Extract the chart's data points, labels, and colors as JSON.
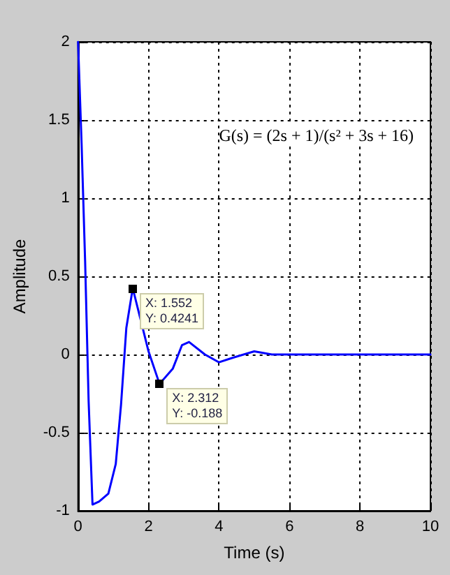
{
  "chart_data": {
    "type": "line",
    "xlabel": "Time (s)",
    "ylabel": "Amplitude",
    "x": [
      0,
      0.1,
      0.2,
      0.3,
      0.41,
      0.6,
      0.86,
      1.07,
      1.22,
      1.37,
      1.552,
      1.8,
      2.0,
      2.312,
      2.69,
      2.95,
      3.15,
      3.6,
      4.0,
      4.4,
      5.0,
      5.5,
      10
    ],
    "series": [
      {
        "color": "#0000ff",
        "values": [
          2,
          1.35,
          0.6,
          -0.3,
          -0.96,
          -0.94,
          -0.89,
          -0.7,
          -0.32,
          0.17,
          0.4241,
          0.2,
          0.02,
          -0.188,
          -0.09,
          0.06,
          0.08,
          0,
          -0.05,
          -0.02,
          0.02,
          0,
          0
        ]
      }
    ],
    "xlim": [
      0,
      10
    ],
    "xticks": [
      0,
      2,
      4,
      6,
      8,
      10
    ],
    "ylim": [
      -1,
      2
    ],
    "yticks": [
      -1,
      -0.5,
      0,
      0.5,
      1,
      1.5,
      2
    ],
    "grid": true,
    "marker": "none",
    "line_style": "solid",
    "annotations": [
      {
        "text": "X: 1.552\nY: 0.4241",
        "x": 1.552,
        "y": 0.4241
      },
      {
        "text": "X: 2.312\nY: -0.188",
        "x": 2.312,
        "y": -0.188
      },
      "G(s) = (2s + 1)/(s² + 3s + 16)"
    ]
  }
}
